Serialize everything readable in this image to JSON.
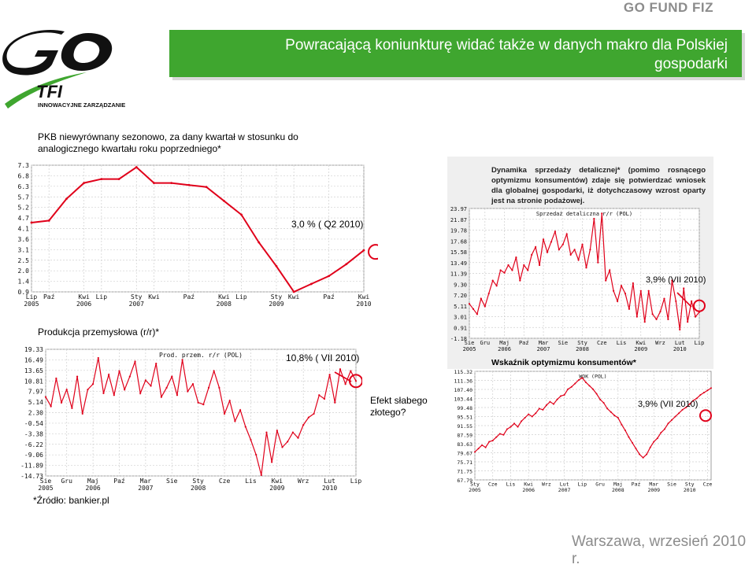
{
  "header": {
    "brand": "GO FUND FIZ",
    "title": "Powracającą koniunkturę widać także w danych makro dla Polskiej gospodarki",
    "logo_tagline": "INNOWACYJNE ZARZĄDZANIE",
    "logo_sub": "TFI"
  },
  "labels": {
    "gdp_title": "PKB niewyrównany sezonowo, za dany kwartał w stosunku do analogicznego kwartału roku poprzedniego*",
    "gdp_callout": "3,0 % ( Q2 2010)",
    "industry_title": "Produkcja przemysłowa  (r/r)*",
    "industry_callout": "10,8% ( VII 2010)",
    "zloty_note": "Efekt słabego złotego?",
    "retail_desc": "Dynamika sprzedaży detalicznej* (pomimo rosnącego optymizmu konsumentów) zdaje się potwierdzać wniosek dla globalnej gospodarki, iż dotychczasowy wzrost oparty jest na stronie podażowej.",
    "retail_callout": "3,9%  (VII 2010)",
    "conf_title": "Wskaźnik optymizmu konsumentów*",
    "conf_callout": "3,9%  (VII 2010)",
    "source": "*Źródło: bankier.pl",
    "footer": "Warszawa, wrzesień 2010 r."
  },
  "chart_data": [
    {
      "type": "line",
      "id": "gdp",
      "ylim": [
        0.9,
        7.3
      ],
      "yticks": [
        "7.3",
        "6.8",
        "6.3",
        "5.7",
        "5.2",
        "4.7",
        "4.1",
        "3.6",
        "3.1",
        "2.5",
        "2.0",
        "1.4",
        "0.9"
      ],
      "xticks": [
        {
          "t": "Lip\n2005",
          "x": 0
        },
        {
          "t": "Paź",
          "x": 1
        },
        {
          "t": "Kwi\n2006",
          "x": 3
        },
        {
          "t": "Lip",
          "x": 4
        },
        {
          "t": "Sty\n2007",
          "x": 6
        },
        {
          "t": "Kwi",
          "x": 7
        },
        {
          "t": "Paź",
          "x": 9
        },
        {
          "t": "Kwi\n2008",
          "x": 11
        },
        {
          "t": "Lip",
          "x": 12
        },
        {
          "t": "Sty\n2009",
          "x": 14
        },
        {
          "t": "Kwi",
          "x": 15
        },
        {
          "t": "Paź",
          "x": 17
        },
        {
          "t": "Kwi\n2010",
          "x": 19
        }
      ],
      "values": [
        4.4,
        4.5,
        5.6,
        6.4,
        6.6,
        6.6,
        7.2,
        6.4,
        6.4,
        6.3,
        6.2,
        5.5,
        4.8,
        3.4,
        2.2,
        0.9,
        1.3,
        1.7,
        2.3,
        3.0
      ]
    },
    {
      "type": "line",
      "id": "industry",
      "title": "Prod. przem. r/r (POL)",
      "ylim": [
        -14.73,
        19.33
      ],
      "yticks": [
        "19.33",
        "16.49",
        "13.65",
        "10.81",
        "7.97",
        "5.14",
        "2.30",
        "-0.54",
        "-3.38",
        "-6.22",
        "-9.06",
        "-11.89",
        "-14.73"
      ],
      "xticks": [
        {
          "t": "Sie\n2005",
          "x": 0
        },
        {
          "t": "Gru",
          "x": 4
        },
        {
          "t": "Maj\n2006",
          "x": 9
        },
        {
          "t": "Paź",
          "x": 14
        },
        {
          "t": "Mar\n2007",
          "x": 19
        },
        {
          "t": "Sie",
          "x": 24
        },
        {
          "t": "Sty\n2008",
          "x": 29
        },
        {
          "t": "Cze",
          "x": 34
        },
        {
          "t": "Lis",
          "x": 39
        },
        {
          "t": "Kwi\n2009",
          "x": 44
        },
        {
          "t": "Wrz",
          "x": 49
        },
        {
          "t": "Lut\n2010",
          "x": 54
        },
        {
          "t": "Lip",
          "x": 59
        }
      ],
      "values": [
        6.5,
        4.0,
        11.5,
        5.0,
        8.5,
        3.5,
        12.0,
        2.0,
        8.5,
        10.0,
        17.0,
        7.5,
        12.5,
        7.0,
        13.5,
        8.5,
        12.0,
        16.0,
        7.5,
        11.0,
        9.5,
        15.5,
        6.5,
        9.0,
        12.0,
        7.0,
        16.5,
        8.0,
        10.0,
        5.0,
        4.5,
        9.0,
        13.5,
        9.0,
        2.0,
        5.5,
        0.0,
        3.0,
        -1.5,
        -5.0,
        -9.0,
        -14.5,
        -3.0,
        -11.0,
        -2.5,
        -7.0,
        -5.5,
        -3.0,
        -4.5,
        -1.0,
        1.0,
        2.0,
        7.0,
        6.0,
        12.5,
        5.0,
        14.0,
        10.0,
        13.5,
        10.8
      ]
    },
    {
      "type": "line",
      "id": "retail",
      "title": "Sprzedaż detaliczna r/r (POL)",
      "ylim": [
        -1.18,
        23.97
      ],
      "yticks": [
        "23.97",
        "21.87",
        "19.78",
        "17.68",
        "15.58",
        "13.49",
        "11.39",
        "9.30",
        "7.20",
        "5.11",
        "3.01",
        "0.91",
        "-1.18"
      ],
      "xticks": [
        {
          "t": "Sie\n2005",
          "x": 0
        },
        {
          "t": "Gru",
          "x": 4
        },
        {
          "t": "Maj\n2006",
          "x": 9
        },
        {
          "t": "Paź",
          "x": 14
        },
        {
          "t": "Mar\n2007",
          "x": 19
        },
        {
          "t": "Sie",
          "x": 24
        },
        {
          "t": "Sty\n2008",
          "x": 29
        },
        {
          "t": "Cze",
          "x": 34
        },
        {
          "t": "Lis",
          "x": 39
        },
        {
          "t": "Kwi\n2009",
          "x": 44
        },
        {
          "t": "Wrz",
          "x": 49
        },
        {
          "t": "Lut\n2010",
          "x": 54
        },
        {
          "t": "Lip",
          "x": 59
        }
      ],
      "values": [
        5.5,
        4.5,
        3.5,
        6.5,
        5.0,
        7.5,
        10.0,
        9.0,
        12.0,
        11.5,
        13.0,
        12.0,
        14.5,
        10.0,
        13.0,
        12.0,
        15.0,
        16.5,
        13.0,
        18.0,
        15.5,
        17.5,
        19.5,
        16.0,
        17.0,
        19.0,
        15.0,
        16.0,
        14.0,
        17.0,
        12.5,
        16.0,
        22.0,
        13.5,
        23.0,
        10.0,
        12.0,
        8.0,
        6.0,
        9.0,
        7.5,
        4.5,
        9.5,
        3.0,
        8.0,
        2.0,
        8.0,
        3.5,
        2.5,
        4.0,
        6.5,
        2.5,
        10.0,
        6.0,
        0.5,
        8.5,
        2.0,
        6.0,
        3.0,
        3.9
      ]
    },
    {
      "type": "line",
      "id": "confidence",
      "title": "WOK (POL)",
      "ylim": [
        67.79,
        115.32
      ],
      "yticks": [
        "115.32",
        "111.36",
        "107.40",
        "103.44",
        "99.48",
        "95.51",
        "91.55",
        "87.59",
        "83.63",
        "79.67",
        "75.71",
        "71.75",
        "67.79"
      ],
      "xticks": [
        {
          "t": "Sty\n2005",
          "x": 0
        },
        {
          "t": "Cze",
          "x": 5
        },
        {
          "t": "Lis",
          "x": 10
        },
        {
          "t": "Kwi\n2006",
          "x": 15
        },
        {
          "t": "Wrz",
          "x": 20
        },
        {
          "t": "Lut\n2007",
          "x": 25
        },
        {
          "t": "Lip",
          "x": 30
        },
        {
          "t": "Gru",
          "x": 35
        },
        {
          "t": "Maj\n2008",
          "x": 40
        },
        {
          "t": "Paź",
          "x": 45
        },
        {
          "t": "Mar\n2009",
          "x": 50
        },
        {
          "t": "Sie",
          "x": 55
        },
        {
          "t": "Sty\n2010",
          "x": 60
        },
        {
          "t": "Cze",
          "x": 65
        }
      ],
      "values": [
        80.0,
        81.5,
        83.0,
        82.0,
        84.5,
        85.0,
        86.5,
        88.0,
        87.5,
        90.0,
        91.0,
        92.5,
        91.0,
        93.5,
        95.0,
        96.5,
        95.5,
        97.0,
        99.0,
        98.5,
        100.5,
        102.0,
        101.0,
        103.0,
        104.5,
        105.0,
        107.5,
        108.5,
        110.0,
        111.5,
        112.5,
        110.5,
        109.0,
        107.5,
        105.5,
        103.0,
        101.5,
        99.0,
        97.5,
        96.0,
        95.0,
        92.0,
        89.5,
        86.5,
        84.0,
        81.5,
        79.0,
        77.5,
        79.0,
        82.0,
        84.5,
        86.0,
        88.5,
        90.0,
        92.5,
        94.0,
        95.5,
        97.0,
        98.5,
        99.5,
        101.0,
        102.5,
        103.5,
        105.0,
        106.0,
        107.0,
        108.0
      ]
    }
  ]
}
